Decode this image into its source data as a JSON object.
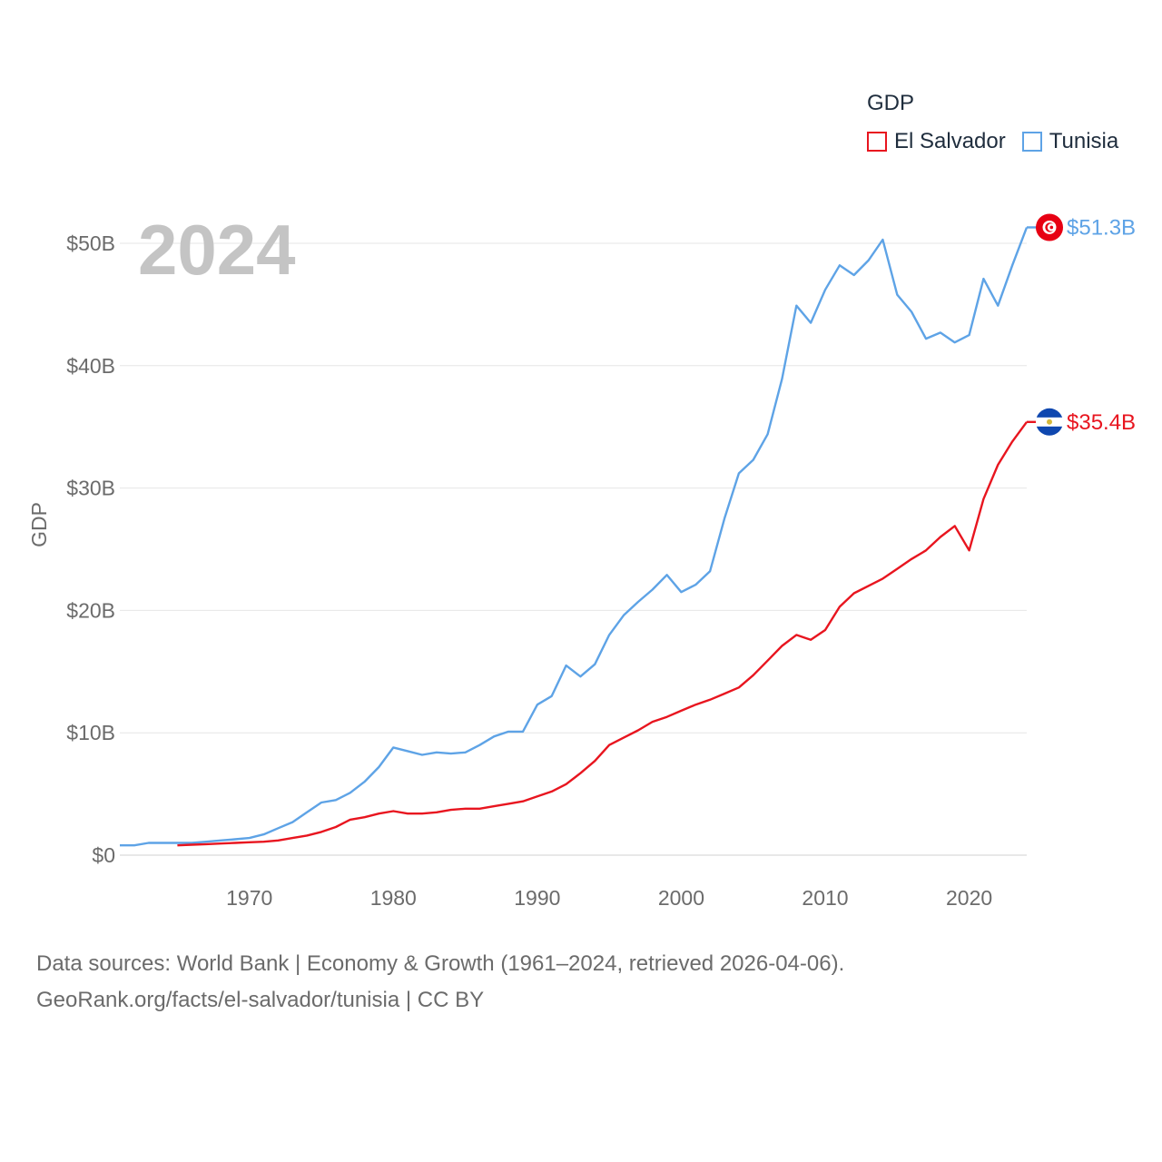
{
  "legend": {
    "title": "GDP",
    "items": [
      {
        "name": "El Salvador",
        "color": "#e8151f"
      },
      {
        "name": "Tunisia",
        "color": "#5ea3e6"
      }
    ]
  },
  "footer": {
    "line1": "Data sources: World Bank | Economy & Growth (1961–2024, retrieved 2026-04-06).",
    "line2": "GeoRank.org/facts/el-salvador/tunisia | CC BY"
  },
  "chart_data": {
    "type": "line",
    "title": "",
    "year_label": "2024",
    "xlabel": "",
    "ylabel": "GDP",
    "xlim": [
      1961,
      2024
    ],
    "ylim": [
      0,
      50
    ],
    "x_ticks": [
      1970,
      1980,
      1990,
      2000,
      2010,
      2020
    ],
    "y_ticks": [
      0,
      10,
      20,
      30,
      40,
      50
    ],
    "y_tick_labels": [
      "$0",
      "$10B",
      "$20B",
      "$30B",
      "$40B",
      "$50B"
    ],
    "grid": true,
    "legend_position": "top-right",
    "series": [
      {
        "name": "Tunisia",
        "color": "#5ea3e6",
        "end_label": "$51.3B",
        "flag": "tunisia",
        "x": [
          1961,
          1962,
          1963,
          1964,
          1965,
          1966,
          1967,
          1968,
          1969,
          1970,
          1971,
          1972,
          1973,
          1974,
          1975,
          1976,
          1977,
          1978,
          1979,
          1980,
          1981,
          1982,
          1983,
          1984,
          1985,
          1986,
          1987,
          1988,
          1989,
          1990,
          1991,
          1992,
          1993,
          1994,
          1995,
          1996,
          1997,
          1998,
          1999,
          2000,
          2001,
          2002,
          2003,
          2004,
          2005,
          2006,
          2007,
          2008,
          2009,
          2010,
          2011,
          2012,
          2013,
          2014,
          2015,
          2016,
          2017,
          2018,
          2019,
          2020,
          2021,
          2022,
          2023,
          2024
        ],
        "values": [
          0.8,
          0.8,
          1.0,
          1.0,
          1.0,
          1.0,
          1.1,
          1.2,
          1.3,
          1.4,
          1.7,
          2.2,
          2.7,
          3.5,
          4.3,
          4.5,
          5.1,
          6.0,
          7.2,
          8.8,
          8.5,
          8.2,
          8.4,
          8.3,
          8.4,
          9.0,
          9.7,
          10.1,
          10.1,
          12.3,
          13.0,
          15.5,
          14.6,
          15.6,
          18.0,
          19.6,
          20.7,
          21.7,
          22.9,
          21.5,
          22.1,
          23.2,
          27.5,
          31.2,
          32.3,
          34.4,
          38.9,
          44.9,
          43.5,
          46.2,
          48.2,
          47.4,
          48.6,
          50.3,
          45.8,
          44.4,
          42.2,
          42.7,
          41.9,
          42.5,
          47.1,
          44.9,
          48.2,
          51.3
        ]
      },
      {
        "name": "El Salvador",
        "color": "#e8151f",
        "end_label": "$35.4B",
        "flag": "el-salvador",
        "x": [
          1965,
          1966,
          1967,
          1968,
          1969,
          1970,
          1971,
          1972,
          1973,
          1974,
          1975,
          1976,
          1977,
          1978,
          1979,
          1980,
          1981,
          1982,
          1983,
          1984,
          1985,
          1986,
          1987,
          1988,
          1989,
          1990,
          1991,
          1992,
          1993,
          1994,
          1995,
          1996,
          1997,
          1998,
          1999,
          2000,
          2001,
          2002,
          2003,
          2004,
          2005,
          2006,
          2007,
          2008,
          2009,
          2010,
          2011,
          2012,
          2013,
          2014,
          2015,
          2016,
          2017,
          2018,
          2019,
          2020,
          2021,
          2022,
          2023,
          2024
        ],
        "values": [
          0.8,
          0.85,
          0.9,
          0.95,
          1.0,
          1.05,
          1.1,
          1.2,
          1.4,
          1.6,
          1.9,
          2.3,
          2.9,
          3.1,
          3.4,
          3.6,
          3.4,
          3.4,
          3.5,
          3.7,
          3.8,
          3.8,
          4.0,
          4.2,
          4.4,
          4.8,
          5.2,
          5.8,
          6.7,
          7.7,
          9.0,
          9.6,
          10.2,
          10.9,
          11.3,
          11.8,
          12.3,
          12.7,
          13.2,
          13.7,
          14.7,
          15.9,
          17.1,
          18.0,
          17.6,
          18.4,
          20.3,
          21.4,
          22.0,
          22.6,
          23.4,
          24.2,
          24.9,
          26.0,
          26.9,
          24.9,
          29.1,
          31.9,
          33.8,
          35.4
        ]
      }
    ]
  }
}
